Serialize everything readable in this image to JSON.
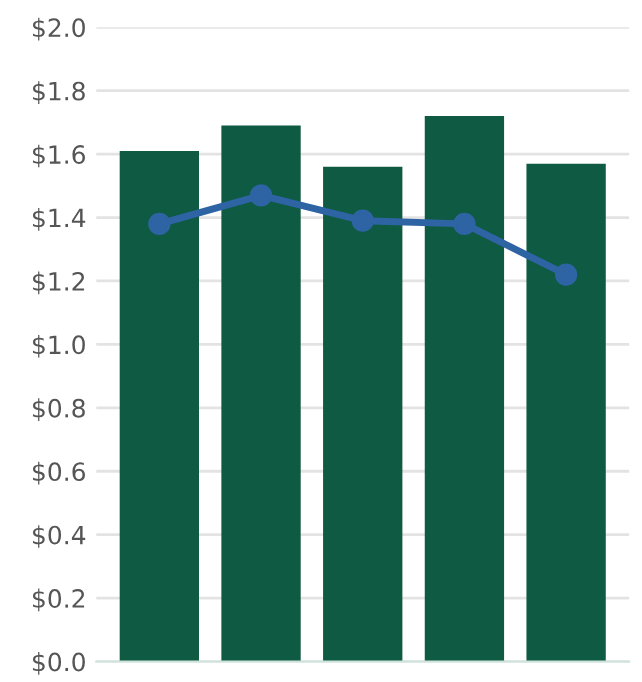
{
  "chart_data": {
    "type": "bar",
    "categories": [
      null,
      null,
      null,
      null,
      null
    ],
    "series": [
      {
        "color": "#0e5a42",
        "values": [
          1.61,
          1.69,
          1.56,
          1.72,
          1.57
        ]
      },
      {
        "type": "line",
        "color": "#2e64a4",
        "values": [
          1.38,
          1.47,
          1.39,
          1.38,
          1.22
        ],
        "marker": "circle"
      }
    ],
    "ylim": [
      0,
      2.0
    ],
    "yticks": [
      {
        "value": 0,
        "label": "$0.0"
      },
      {
        "value": 0.2,
        "label": "$0.2"
      },
      {
        "value": 0.4,
        "label": "$0.4"
      },
      {
        "value": 0.6,
        "label": "$0.6"
      },
      {
        "value": 0.8,
        "label": "$0.8"
      },
      {
        "value": 1.0,
        "label": "$1.0"
      },
      {
        "value": 1.2,
        "label": "$1.2"
      },
      {
        "value": 1.4,
        "label": "$1.4"
      },
      {
        "value": 1.6,
        "label": "$1.6"
      },
      {
        "value": 1.8,
        "label": "$1.8"
      },
      {
        "value": 2.0,
        "label": "$2.0"
      }
    ],
    "grid": "y",
    "tick_labels": "y"
  }
}
